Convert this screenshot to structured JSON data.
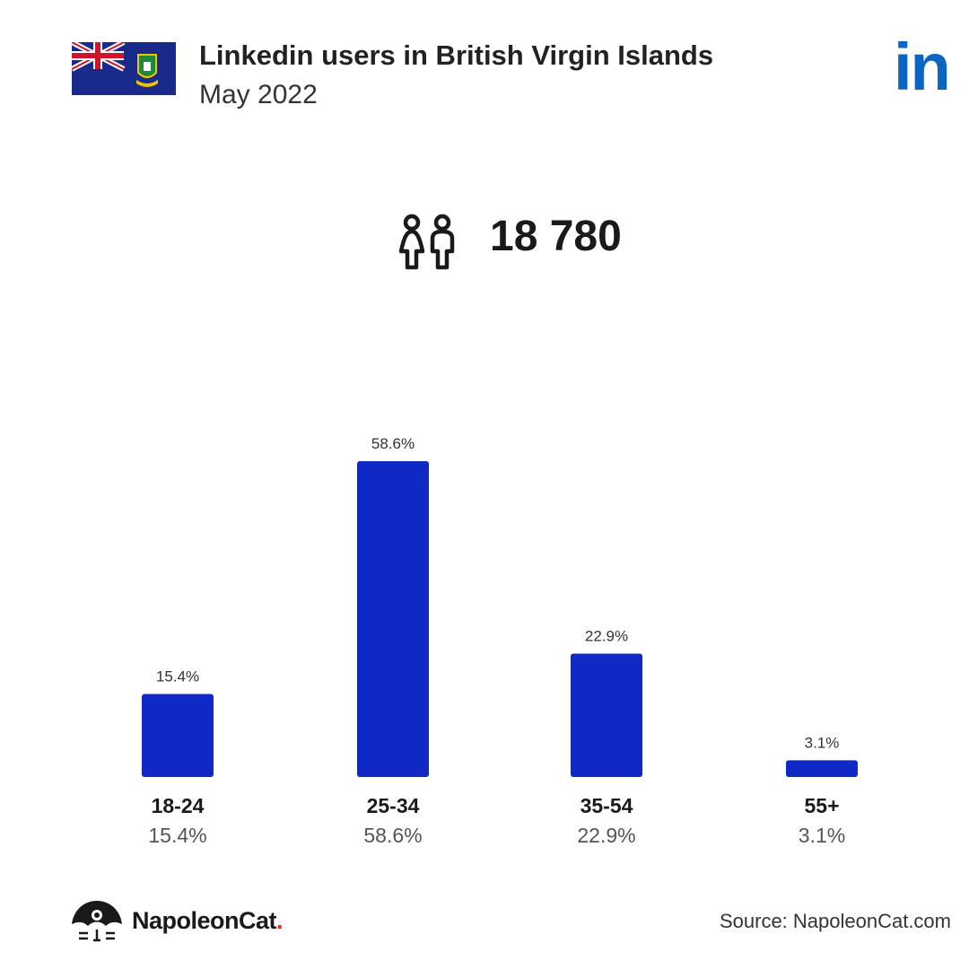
{
  "header": {
    "title": "Linkedin users in British Virgin Islands",
    "subtitle": "May 2022",
    "logo_text": "in",
    "flag_icon": "british-virgin-islands-flag-icon",
    "brand_color": "#0a66c2"
  },
  "summary": {
    "total_users": "18 780",
    "icon": "users-icon"
  },
  "chart_data": {
    "type": "bar",
    "categories": [
      "18-24",
      "25-34",
      "35-54",
      "55+"
    ],
    "values": [
      15.4,
      58.6,
      22.9,
      3.1
    ],
    "value_labels": [
      "15.4%",
      "58.6%",
      "22.9%",
      "3.1%"
    ],
    "ylim": [
      0,
      58.6
    ],
    "bar_color": "#0f2ac4",
    "grid": false,
    "legend": "none"
  },
  "footer": {
    "brand_name": "NapoleonCat",
    "brand_dot": ".",
    "source": "Source: NapoleonCat.com",
    "brand_icon": "napoleoncat-logo-icon"
  }
}
